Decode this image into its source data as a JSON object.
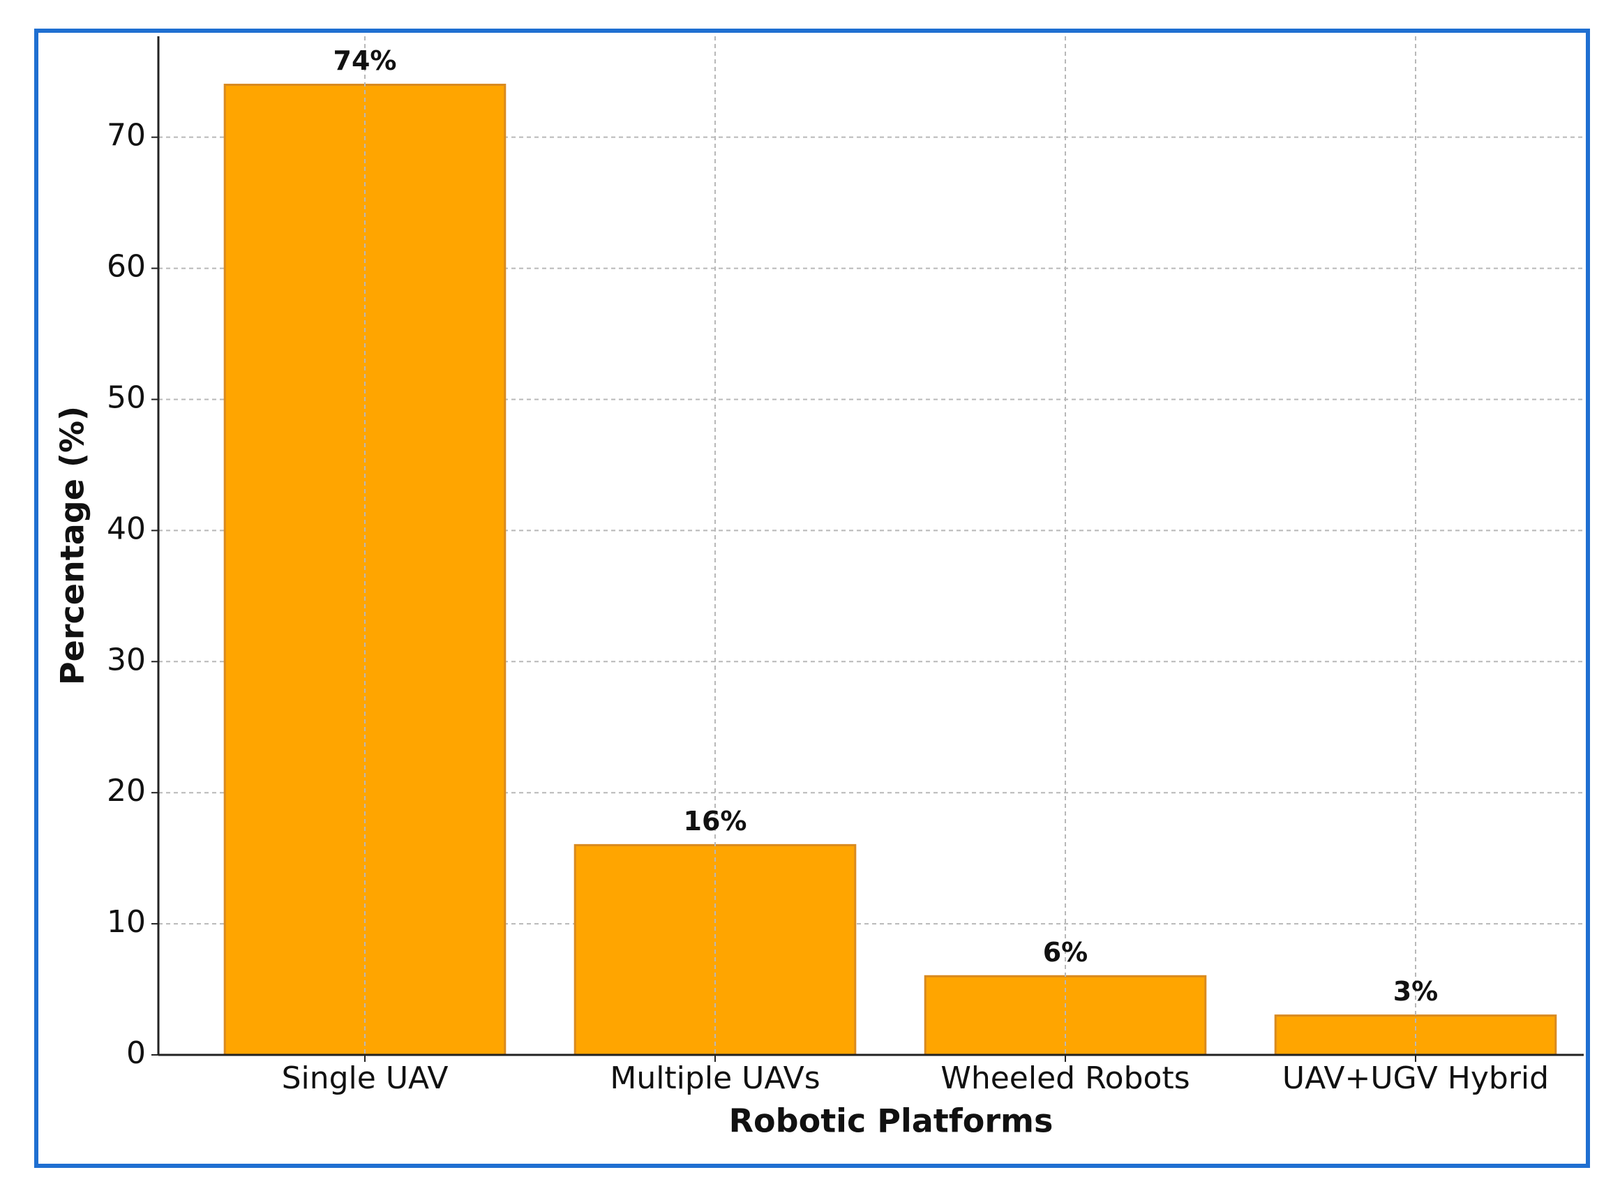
{
  "chart_data": {
    "type": "bar",
    "x_label": "Robotic Platforms",
    "y_label": "Percentage (%)",
    "categories": [
      "Single UAV",
      "Multiple UAVs",
      "Wheeled Robots",
      "UAV+UGV Hybrid"
    ],
    "values": [
      74,
      16,
      6,
      3
    ],
    "value_labels": [
      "74%",
      "16%",
      "6%",
      "3%"
    ],
    "color": "#ffa500",
    "edge_color": "#d98a1f",
    "ylim": [
      0,
      77.7
    ],
    "yticks": [
      0,
      10,
      20,
      30,
      40,
      50,
      60,
      70
    ],
    "grid": true
  }
}
